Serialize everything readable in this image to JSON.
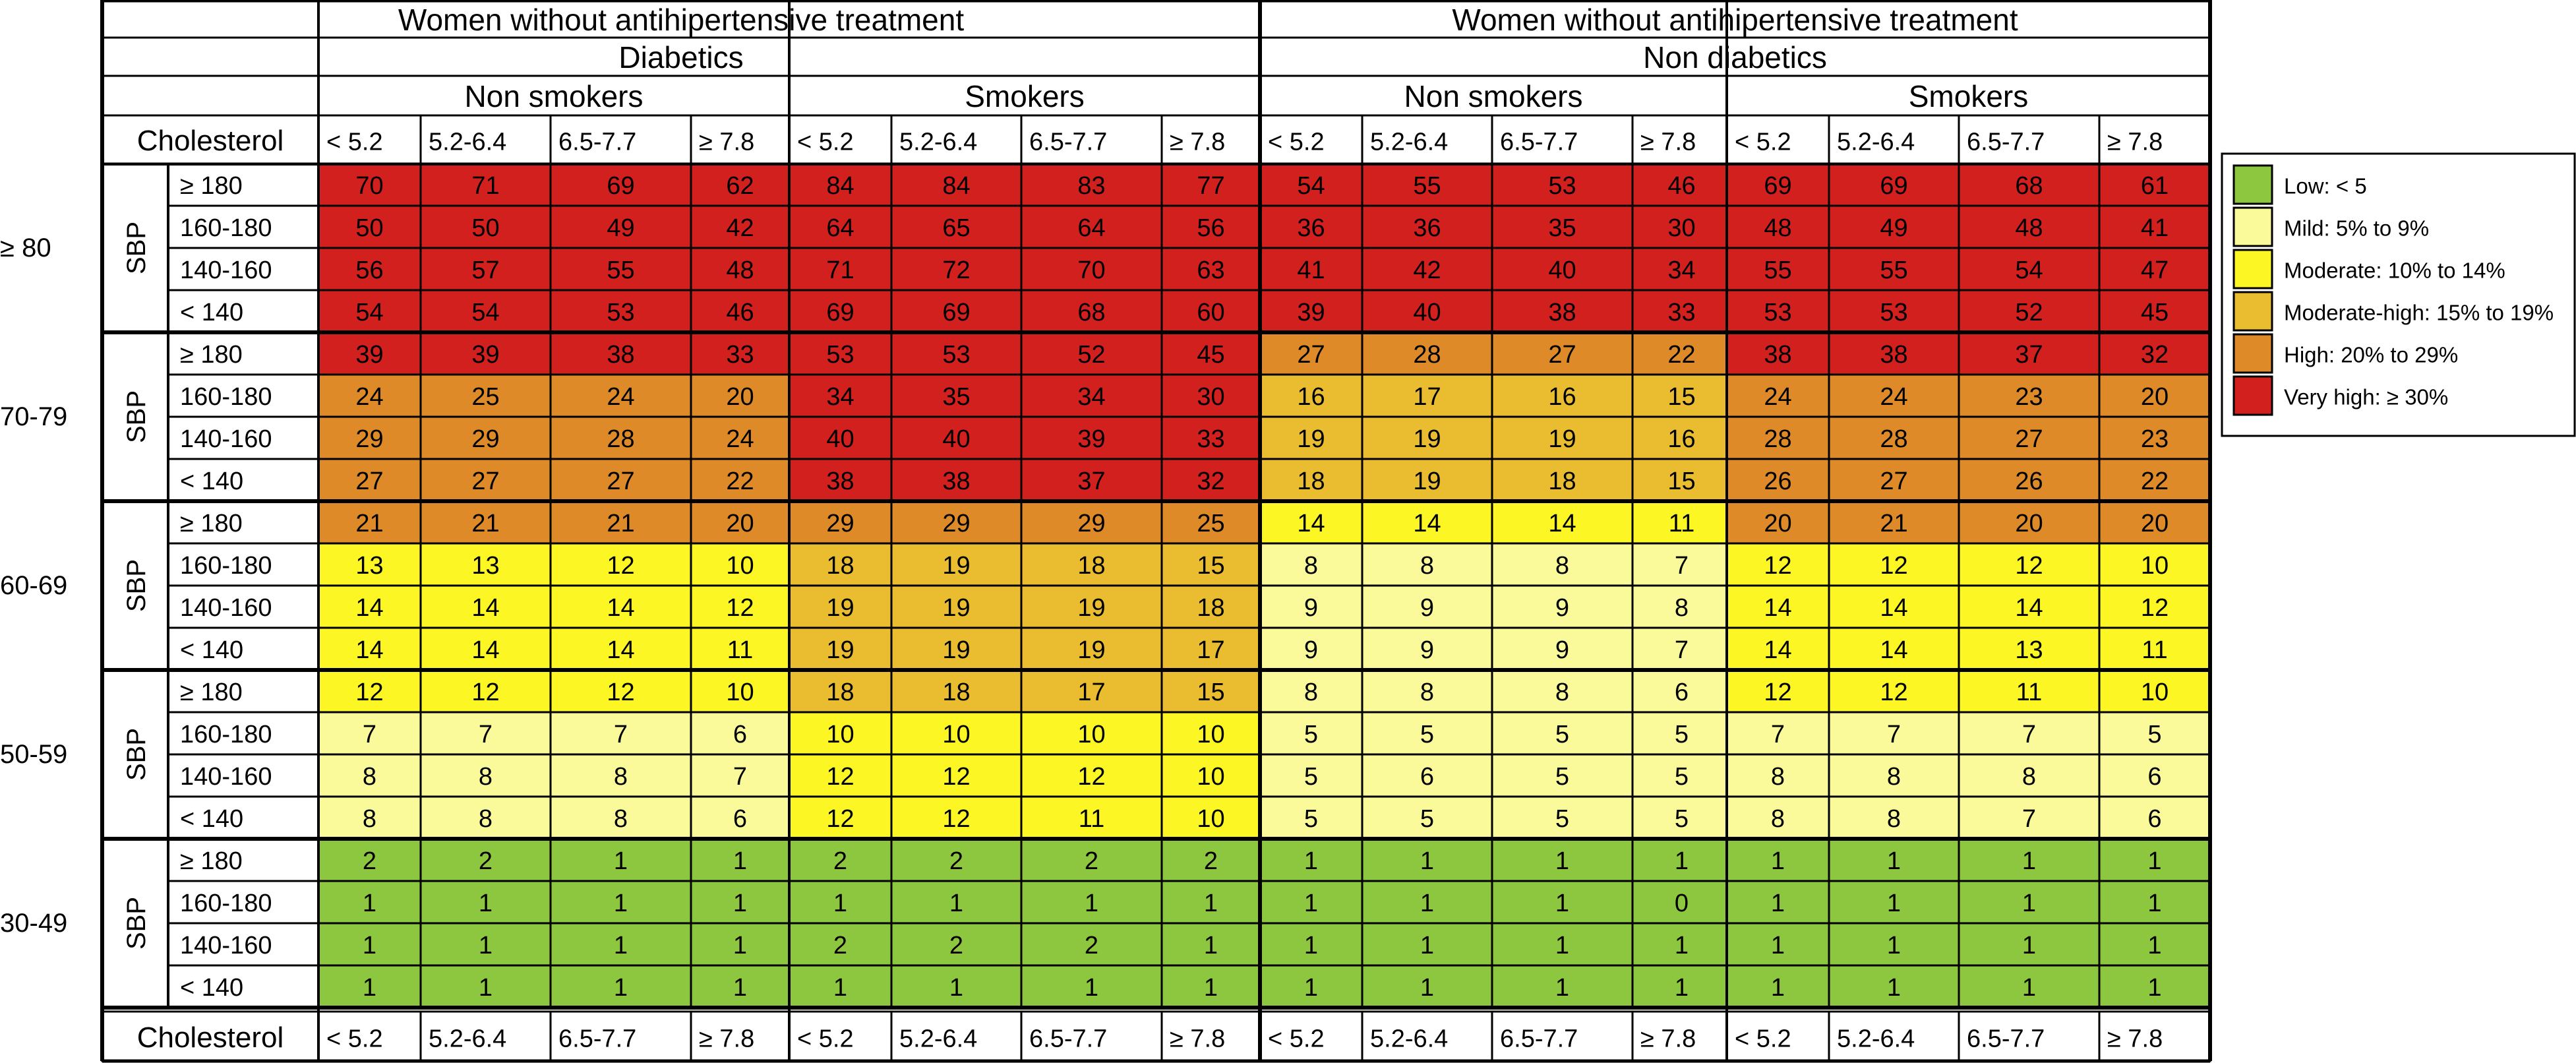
{
  "header": {
    "left_title": "Women without antihipertensive treatment",
    "right_title": "Women without antihipertensive treatment",
    "left_group": "Diabetics",
    "right_group": "Non diabetics",
    "smoking": [
      "Non smokers",
      "Smokers",
      "Non smokers",
      "Smokers"
    ],
    "cholesterol_label": "Cholesterol",
    "cholesterol_levels": [
      "< 5.2",
      "5.2-6.4",
      "6.5-7.7",
      "≥ 7.8"
    ],
    "sbp_label": "SBP"
  },
  "age_groups": [
    "≥ 80",
    "70-79",
    "60-69",
    "50-59",
    "30-49"
  ],
  "sbp_levels": [
    "≥ 180",
    "160-180",
    "140-160",
    "< 140"
  ],
  "legend": [
    {
      "label": "Low: < 5",
      "color": "#8dc63f"
    },
    {
      "label": "Mild: 5% to 9%",
      "color": "#fbfa9a"
    },
    {
      "label": "Moderate: 10% to 14%",
      "color": "#fbf624"
    },
    {
      "label": "Moderate-high: 15% to 19%",
      "color": "#e9bd2f"
    },
    {
      "label": "High: 20% to 29%",
      "color": "#de8a29"
    },
    {
      "label": "Very high: ≥ 30%",
      "color": "#d2201f"
    }
  ],
  "chart_data": {
    "type": "heatmap",
    "description": "Risk values per row (age group × SBP) across 16 columns: Diabetics Non smokers, Diabetics Smokers, Non diabetics Non smokers, Non diabetics Smokers; each with cholesterol < 5.2, 5.2-6.4, 6.5-7.7, ≥ 7.8",
    "rows": [
      [
        70,
        71,
        69,
        62,
        84,
        84,
        83,
        77,
        54,
        55,
        53,
        46,
        69,
        69,
        68,
        61
      ],
      [
        50,
        50,
        49,
        42,
        64,
        65,
        64,
        56,
        36,
        36,
        35,
        30,
        48,
        49,
        48,
        41
      ],
      [
        56,
        57,
        55,
        48,
        71,
        72,
        70,
        63,
        41,
        42,
        40,
        34,
        55,
        55,
        54,
        47
      ],
      [
        54,
        54,
        53,
        46,
        69,
        69,
        68,
        60,
        39,
        40,
        38,
        33,
        53,
        53,
        52,
        45
      ],
      [
        39,
        39,
        38,
        33,
        53,
        53,
        52,
        45,
        27,
        28,
        27,
        22,
        38,
        38,
        37,
        32
      ],
      [
        24,
        25,
        24,
        20,
        34,
        35,
        34,
        30,
        16,
        17,
        16,
        15,
        24,
        24,
        23,
        20
      ],
      [
        29,
        29,
        28,
        24,
        40,
        40,
        39,
        33,
        19,
        19,
        19,
        16,
        28,
        28,
        27,
        23
      ],
      [
        27,
        27,
        27,
        22,
        38,
        38,
        37,
        32,
        18,
        19,
        18,
        15,
        26,
        27,
        26,
        22
      ],
      [
        21,
        21,
        21,
        20,
        29,
        29,
        29,
        25,
        14,
        14,
        14,
        11,
        20,
        21,
        20,
        20
      ],
      [
        13,
        13,
        12,
        10,
        18,
        19,
        18,
        15,
        8,
        8,
        8,
        7,
        12,
        12,
        12,
        10
      ],
      [
        14,
        14,
        14,
        12,
        19,
        19,
        19,
        18,
        9,
        9,
        9,
        8,
        14,
        14,
        14,
        12
      ],
      [
        14,
        14,
        14,
        11,
        19,
        19,
        19,
        17,
        9,
        9,
        9,
        7,
        14,
        14,
        13,
        11
      ],
      [
        12,
        12,
        12,
        10,
        18,
        18,
        17,
        15,
        8,
        8,
        8,
        6,
        12,
        12,
        11,
        10
      ],
      [
        7,
        7,
        7,
        6,
        10,
        10,
        10,
        10,
        5,
        5,
        5,
        5,
        7,
        7,
        7,
        5
      ],
      [
        8,
        8,
        8,
        7,
        12,
        12,
        12,
        10,
        5,
        6,
        5,
        5,
        8,
        8,
        8,
        6
      ],
      [
        8,
        8,
        8,
        6,
        12,
        12,
        11,
        10,
        5,
        5,
        5,
        5,
        8,
        8,
        7,
        6
      ],
      [
        2,
        2,
        1,
        1,
        2,
        2,
        2,
        2,
        1,
        1,
        1,
        1,
        1,
        1,
        1,
        1
      ],
      [
        1,
        1,
        1,
        1,
        1,
        1,
        1,
        1,
        1,
        1,
        1,
        0,
        1,
        1,
        1,
        1
      ],
      [
        1,
        1,
        1,
        1,
        2,
        2,
        2,
        1,
        1,
        1,
        1,
        1,
        1,
        1,
        1,
        1
      ],
      [
        1,
        1,
        1,
        1,
        1,
        1,
        1,
        1,
        1,
        1,
        1,
        1,
        1,
        1,
        1,
        1
      ]
    ],
    "thresholds": [
      5,
      10,
      15,
      20,
      30
    ]
  }
}
